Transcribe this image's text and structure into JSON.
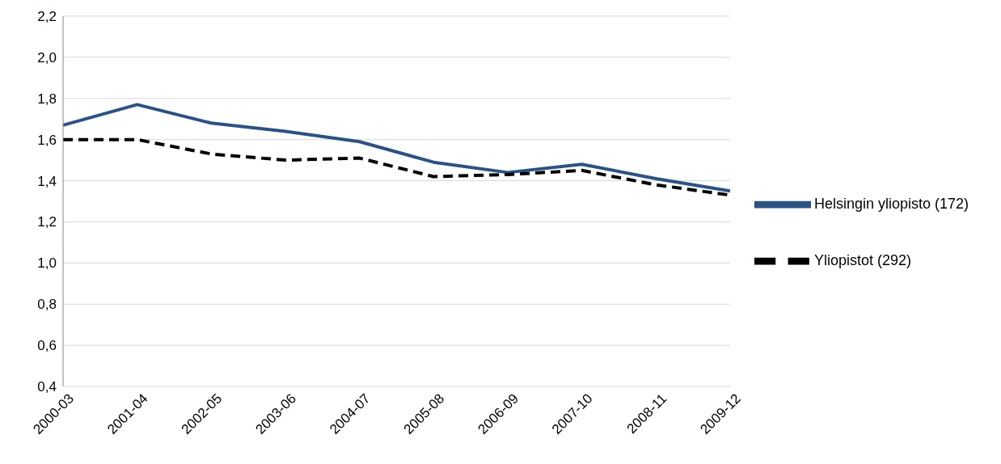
{
  "chart_data": {
    "type": "line",
    "categories": [
      "2000-03",
      "2001-04",
      "2002-05",
      "2003-06",
      "2004-07",
      "2005-08",
      "2006-09",
      "2007-10",
      "2008-11",
      "2009-12"
    ],
    "series": [
      {
        "name": "Helsingin yliopisto (172)",
        "color": "#2c5282",
        "line_style": "solid",
        "values": [
          1.67,
          1.77,
          1.68,
          1.64,
          1.59,
          1.49,
          1.44,
          1.48,
          1.41,
          1.35
        ]
      },
      {
        "name": "Yliopistot (292)",
        "color": "#000000",
        "line_style": "dashed",
        "values": [
          1.6,
          1.6,
          1.53,
          1.5,
          1.51,
          1.42,
          1.43,
          1.45,
          1.38,
          1.33
        ]
      }
    ],
    "ylim": [
      0.4,
      2.2
    ],
    "yticks": [
      {
        "value": 0.4,
        "label": "0,4"
      },
      {
        "value": 0.6,
        "label": "0,6"
      },
      {
        "value": 0.8,
        "label": "0,8"
      },
      {
        "value": 1.0,
        "label": "1,0"
      },
      {
        "value": 1.2,
        "label": "1,2"
      },
      {
        "value": 1.4,
        "label": "1,4"
      },
      {
        "value": 1.6,
        "label": "1,6"
      },
      {
        "value": 1.8,
        "label": "1,8"
      },
      {
        "value": 2.0,
        "label": "2,0"
      },
      {
        "value": 2.2,
        "label": "2,2"
      }
    ],
    "grid": "y",
    "legend": "right",
    "marker": "none"
  }
}
